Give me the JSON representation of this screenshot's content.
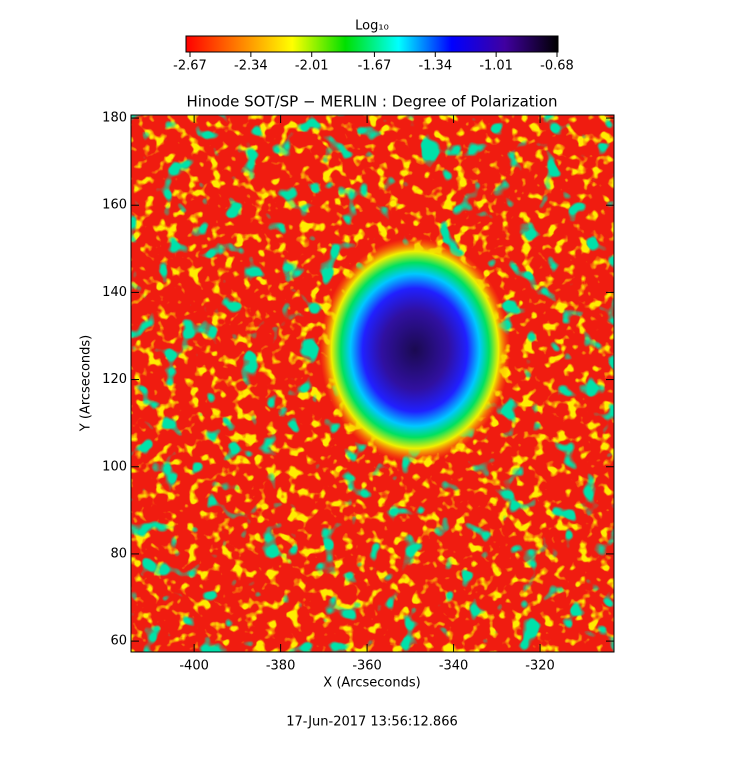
{
  "chart_data": {
    "type": "heatmap",
    "title": "Hinode SOT/SP − MERLIN : Degree of Polarization",
    "x_label": "X (Arcseconds)",
    "y_label": "Y (Arcseconds)",
    "xlim": [
      -414.6,
      -302.9
    ],
    "xticks": [
      -400,
      -380,
      -360,
      -340,
      -320
    ],
    "ylim": [
      57.5,
      180.7
    ],
    "yticks": [
      60,
      80,
      100,
      120,
      140,
      160,
      180
    ],
    "colorbar_label": "Log₁₀",
    "colorbar_lim": [
      -2.67,
      -0.68
    ],
    "colorbar_ticks": [
      -2.67,
      -2.34,
      -2.01,
      -1.67,
      -1.34,
      -1.01,
      -0.68
    ],
    "colormap": [
      "#ff0000",
      "#ff8000",
      "#ffff00",
      "#00e000",
      "#00ffff",
      "#0000ff",
      "#4000a0",
      "#000000"
    ],
    "timestamp": "17-Jun-2017 13:56:12.866"
  }
}
